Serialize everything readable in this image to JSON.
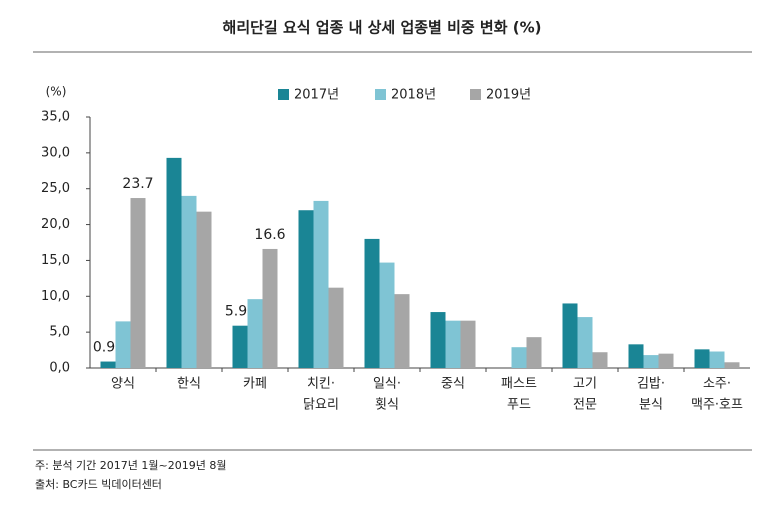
{
  "chart_data": {
    "type": "bar",
    "title": "해리단길 요식 업종 내 상세 업종별 비중 변화 (%)",
    "y_unit": "(%)",
    "categories": [
      [
        "양식"
      ],
      [
        "한식"
      ],
      [
        "카페"
      ],
      [
        "치킨·",
        "닭요리"
      ],
      [
        "일식·",
        "횟식"
      ],
      [
        "중식"
      ],
      [
        "패스트",
        "푸드"
      ],
      [
        "고기",
        "전문"
      ],
      [
        "김밥·",
        "분식"
      ],
      [
        "소주·",
        "맥주·호프"
      ]
    ],
    "series": [
      {
        "name": "2017년",
        "color": "#1a8595",
        "values": [
          0.9,
          29.3,
          5.9,
          22.0,
          18.0,
          7.8,
          0,
          9.0,
          3.3,
          2.6
        ],
        "value_labels": [
          "0.9",
          null,
          "5.9",
          null,
          null,
          null,
          null,
          null,
          null,
          null
        ]
      },
      {
        "name": "2018년",
        "color": "#7fc4d4",
        "values": [
          6.5,
          24.0,
          9.6,
          23.3,
          14.7,
          6.6,
          2.9,
          7.1,
          1.8,
          2.3
        ]
      },
      {
        "name": "2019년",
        "color": "#a6a6a6",
        "values": [
          23.7,
          21.8,
          16.6,
          11.2,
          10.3,
          6.6,
          4.3,
          2.2,
          2.0,
          0.8
        ],
        "value_labels": [
          "23.7",
          null,
          "16.6",
          null,
          null,
          null,
          null,
          null,
          null,
          null
        ]
      }
    ],
    "ylim": [
      0,
      35
    ],
    "yticks": [
      {
        "value": 0,
        "label": "0,0"
      },
      {
        "value": 5,
        "label": "5,0"
      },
      {
        "value": 10,
        "label": "10,0"
      },
      {
        "value": 15,
        "label": "15,0"
      },
      {
        "value": 20,
        "label": "20,0"
      },
      {
        "value": 25,
        "label": "25,0"
      },
      {
        "value": 30,
        "label": "30,0"
      },
      {
        "value": 35,
        "label": "35,0"
      }
    ],
    "notes": [
      "주: 분석 기간 2017년 1월~2019년 8월",
      "출처: BC카드 빅데이터센터"
    ]
  }
}
